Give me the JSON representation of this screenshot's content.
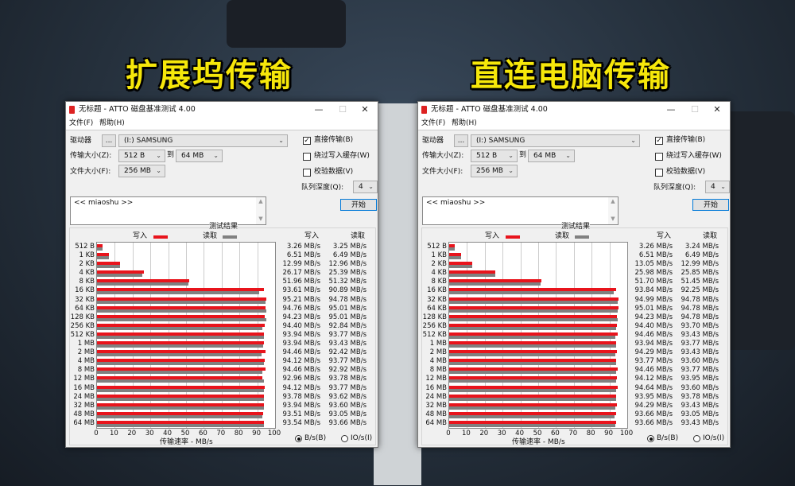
{
  "headlines": [
    "扩展坞传输",
    "直连电脑传输"
  ],
  "colors": {
    "write": "#e8141c",
    "read": "#808080",
    "headline": "#f6e70a"
  },
  "windows": [
    {
      "title": "无标题 - ATTO 磁盘基准测试 4.00",
      "menu": [
        "文件(F)",
        "帮助(H)"
      ],
      "drive_label": "驱动器",
      "drive_browse": "...",
      "drive_value": "(I:) SAMSUNG",
      "transfer_label": "传输大小(Z):",
      "transfer_from": "512 B",
      "transfer_to_label": "到",
      "transfer_to": "64 MB",
      "file_size_label": "文件大小(F):",
      "file_size": "256 MB",
      "checkboxes": [
        {
          "label": "直接传输(B)",
          "checked": true
        },
        {
          "label": "绕过写入缓存(W)",
          "checked": false
        },
        {
          "label": "校验数据(V)",
          "checked": false
        }
      ],
      "queue_label": "队列深度(Q):",
      "queue_value": "4",
      "description": "<< miaoshu >>",
      "start_label": "开始",
      "results_title": "测试结果",
      "write_label": "写入",
      "read_label": "读取",
      "xlabel": "传输速率 - MB/s",
      "radio_bs": "B/s(B)",
      "radio_io": "IO/s(I)",
      "radio_selected": "B/s",
      "write_text": [
        "3.26 MB/s",
        "6.51 MB/s",
        "12.99 MB/s",
        "26.17 MB/s",
        "51.96 MB/s",
        "93.61 MB/s",
        "95.21 MB/s",
        "94.76 MB/s",
        "94.23 MB/s",
        "94.40 MB/s",
        "93.94 MB/s",
        "93.94 MB/s",
        "94.46 MB/s",
        "94.12 MB/s",
        "94.46 MB/s",
        "92.96 MB/s",
        "94.12 MB/s",
        "93.78 MB/s",
        "93.94 MB/s",
        "93.51 MB/s",
        "93.54 MB/s"
      ],
      "read_text": [
        "3.25 MB/s",
        "6.49 MB/s",
        "12.96 MB/s",
        "25.39 MB/s",
        "51.32 MB/s",
        "90.89 MB/s",
        "94.78 MB/s",
        "95.01 MB/s",
        "95.01 MB/s",
        "92.84 MB/s",
        "93.77 MB/s",
        "93.43 MB/s",
        "92.42 MB/s",
        "93.77 MB/s",
        "92.92 MB/s",
        "93.78 MB/s",
        "93.77 MB/s",
        "93.62 MB/s",
        "93.60 MB/s",
        "93.05 MB/s",
        "93.66 MB/s"
      ]
    },
    {
      "title": "无标题 - ATTO 磁盘基准测试 4.00",
      "menu": [
        "文件(F)",
        "帮助(H)"
      ],
      "drive_label": "驱动器",
      "drive_browse": "...",
      "drive_value": "(I:) SAMSUNG",
      "transfer_label": "传输大小(Z):",
      "transfer_from": "512 B",
      "transfer_to_label": "到",
      "transfer_to": "64 MB",
      "file_size_label": "文件大小(F):",
      "file_size": "256 MB",
      "checkboxes": [
        {
          "label": "直接传输(B)",
          "checked": true
        },
        {
          "label": "绕过写入缓存(W)",
          "checked": false
        },
        {
          "label": "校验数据(V)",
          "checked": false
        }
      ],
      "queue_label": "队列深度(Q):",
      "queue_value": "4",
      "description": "<< miaoshu >>",
      "start_label": "开始",
      "results_title": "测试结果",
      "write_label": "写入",
      "read_label": "读取",
      "xlabel": "传输速率 - MB/s",
      "radio_bs": "B/s(B)",
      "radio_io": "IO/s(I)",
      "radio_selected": "B/s",
      "write_text": [
        "3.26 MB/s",
        "6.51 MB/s",
        "13.05 MB/s",
        "25.98 MB/s",
        "51.70 MB/s",
        "93.84 MB/s",
        "94.99 MB/s",
        "95.01 MB/s",
        "94.23 MB/s",
        "94.40 MB/s",
        "94.46 MB/s",
        "93.94 MB/s",
        "94.29 MB/s",
        "93.77 MB/s",
        "94.46 MB/s",
        "94.12 MB/s",
        "94.64 MB/s",
        "93.95 MB/s",
        "94.29 MB/s",
        "93.66 MB/s",
        "93.66 MB/s"
      ],
      "read_text": [
        "3.24 MB/s",
        "6.49 MB/s",
        "12.99 MB/s",
        "25.85 MB/s",
        "51.45 MB/s",
        "92.25 MB/s",
        "94.78 MB/s",
        "94.78 MB/s",
        "94.78 MB/s",
        "93.70 MB/s",
        "93.43 MB/s",
        "93.77 MB/s",
        "93.43 MB/s",
        "93.60 MB/s",
        "93.77 MB/s",
        "93.95 MB/s",
        "93.60 MB/s",
        "93.78 MB/s",
        "93.43 MB/s",
        "93.05 MB/s",
        "93.43 MB/s"
      ]
    }
  ],
  "chart_data": [
    {
      "type": "bar",
      "orientation": "horizontal",
      "title": "测试结果",
      "xlabel": "传输速率 - MB/s",
      "xlim": [
        0,
        100
      ],
      "xticks": [
        0,
        10,
        20,
        30,
        40,
        50,
        60,
        70,
        80,
        90,
        100
      ],
      "grid": true,
      "legend": "top",
      "categories": [
        "512 B",
        "1 KB",
        "2 KB",
        "4 KB",
        "8 KB",
        "16 KB",
        "32 KB",
        "64 KB",
        "128 KB",
        "256 KB",
        "512 KB",
        "1 MB",
        "2 MB",
        "4 MB",
        "8 MB",
        "12 MB",
        "16 MB",
        "24 MB",
        "32 MB",
        "48 MB",
        "64 MB"
      ],
      "series": [
        {
          "name": "写入",
          "values": [
            3.26,
            6.51,
            12.99,
            26.17,
            51.96,
            93.61,
            95.21,
            94.76,
            94.23,
            94.4,
            93.94,
            93.94,
            94.46,
            94.12,
            94.46,
            92.96,
            94.12,
            93.78,
            93.94,
            93.51,
            93.54
          ]
        },
        {
          "name": "读取",
          "values": [
            3.25,
            6.49,
            12.96,
            25.39,
            51.32,
            90.89,
            94.78,
            95.01,
            95.01,
            92.84,
            93.77,
            93.43,
            92.42,
            93.77,
            92.92,
            93.78,
            93.77,
            93.62,
            93.6,
            93.05,
            93.66
          ]
        }
      ]
    },
    {
      "type": "bar",
      "orientation": "horizontal",
      "title": "测试结果",
      "xlabel": "传输速率 - MB/s",
      "xlim": [
        0,
        100
      ],
      "xticks": [
        0,
        10,
        20,
        30,
        40,
        50,
        60,
        70,
        80,
        90,
        100
      ],
      "grid": true,
      "legend": "top",
      "categories": [
        "512 B",
        "1 KB",
        "2 KB",
        "4 KB",
        "8 KB",
        "16 KB",
        "32 KB",
        "64 KB",
        "128 KB",
        "256 KB",
        "512 KB",
        "1 MB",
        "2 MB",
        "4 MB",
        "8 MB",
        "12 MB",
        "16 MB",
        "24 MB",
        "32 MB",
        "48 MB",
        "64 MB"
      ],
      "series": [
        {
          "name": "写入",
          "values": [
            3.26,
            6.51,
            13.05,
            25.98,
            51.7,
            93.84,
            94.99,
            95.01,
            94.23,
            94.4,
            94.46,
            93.94,
            94.29,
            93.77,
            94.46,
            94.12,
            94.64,
            93.95,
            94.29,
            93.66,
            93.66
          ]
        },
        {
          "name": "读取",
          "values": [
            3.24,
            6.49,
            12.99,
            25.85,
            51.45,
            92.25,
            94.78,
            94.78,
            94.78,
            93.7,
            93.43,
            93.77,
            93.43,
            93.6,
            93.77,
            93.95,
            93.6,
            93.78,
            93.43,
            93.05,
            93.43
          ]
        }
      ]
    }
  ]
}
